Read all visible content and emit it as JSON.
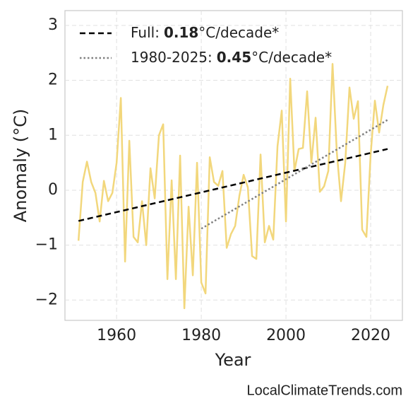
{
  "chart_data": {
    "type": "line",
    "xlabel": "Year",
    "ylabel": "Anomaly (°C)",
    "source": "LocalClimateTrends.com",
    "x": [
      1951,
      1952,
      1953,
      1954,
      1955,
      1956,
      1957,
      1958,
      1959,
      1960,
      1961,
      1962,
      1963,
      1964,
      1965,
      1966,
      1967,
      1968,
      1969,
      1970,
      1971,
      1972,
      1973,
      1974,
      1975,
      1976,
      1977,
      1978,
      1979,
      1980,
      1981,
      1982,
      1983,
      1984,
      1985,
      1986,
      1987,
      1988,
      1989,
      1990,
      1991,
      1992,
      1993,
      1994,
      1995,
      1996,
      1997,
      1998,
      1999,
      2000,
      2001,
      2002,
      2003,
      2004,
      2005,
      2006,
      2007,
      2008,
      2009,
      2010,
      2011,
      2012,
      2013,
      2014,
      2015,
      2016,
      2017,
      2018,
      2019,
      2020,
      2021,
      2022,
      2023,
      2024
    ],
    "series": [
      {
        "color": "#f2d77c",
        "values": [
          -0.92,
          0.15,
          0.52,
          0.15,
          -0.05,
          -0.57,
          0.17,
          -0.2,
          -0.05,
          0.5,
          1.68,
          -1.3,
          0.9,
          -0.85,
          -0.95,
          -0.2,
          -1.0,
          0.4,
          -0.15,
          1.0,
          1.2,
          -1.62,
          0.18,
          -1.62,
          0.63,
          -2.15,
          -0.3,
          -1.55,
          0.5,
          -1.68,
          -1.88,
          0.6,
          0.15,
          0.08,
          0.35,
          -1.05,
          -0.8,
          -0.65,
          -0.1,
          0.28,
          0.05,
          -1.2,
          -1.25,
          0.65,
          -0.95,
          -0.65,
          -0.9,
          0.8,
          1.45,
          -0.57,
          2.03,
          0.35,
          0.75,
          0.77,
          1.8,
          0.5,
          1.32,
          -0.03,
          0.07,
          0.35,
          2.3,
          0.7,
          -0.2,
          0.5,
          1.87,
          1.3,
          1.62,
          -0.72,
          -0.85,
          0.65,
          1.63,
          1.05,
          1.55,
          1.9
        ]
      }
    ],
    "trend_lines": [
      {
        "name": "Full:",
        "slope": 0.18,
        "unit": "°C/decade*",
        "color": "#000000",
        "style": "dashed",
        "x": [
          1951,
          2024
        ],
        "values": [
          -0.56,
          0.75
        ]
      },
      {
        "name": "1980-2025:",
        "slope": 0.45,
        "unit": "°C/decade*",
        "color": "#808080",
        "style": "dotted",
        "x": [
          1980,
          2024
        ],
        "values": [
          -0.7,
          1.28
        ]
      }
    ],
    "xlim": [
      1947.8,
      2027.5
    ],
    "ylim": [
      -2.37,
      3.27
    ],
    "xticks": [
      1960,
      1980,
      2000,
      2020
    ],
    "yticks": [
      {
        "value": -2,
        "label": "−2"
      },
      {
        "value": -1,
        "label": "−1"
      },
      0,
      1,
      2,
      3
    ],
    "grid": true,
    "legend": "upper left"
  }
}
